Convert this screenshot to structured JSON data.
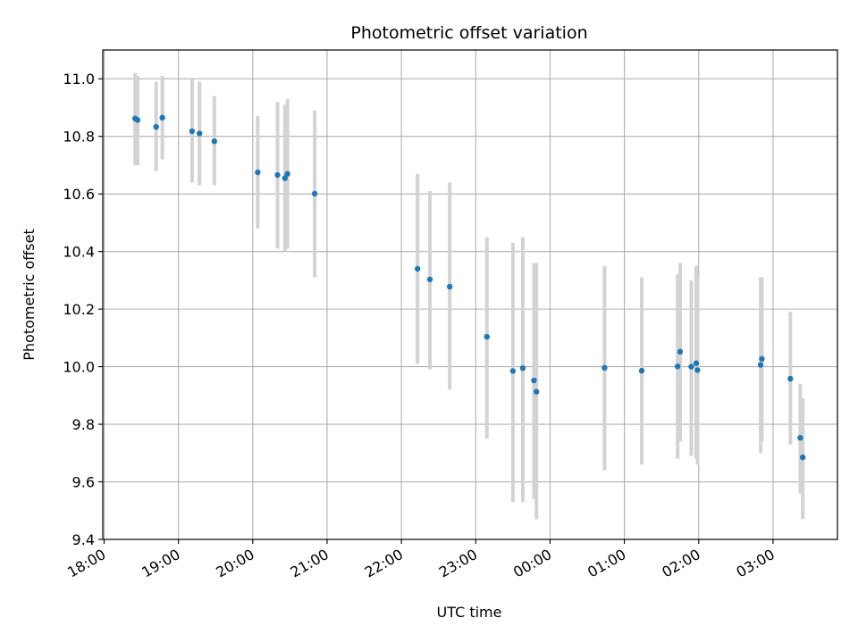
{
  "chart_data": {
    "type": "scatter",
    "title": "Photometric offset variation",
    "xlabel": "UTC time",
    "ylabel": "Photometric offset",
    "x_axis": {
      "kind": "time",
      "start": "18:00",
      "end": "03:52"
    },
    "ylim": [
      9.4,
      11.1
    ],
    "grid": true,
    "xticks": [
      "18:00",
      "19:00",
      "20:00",
      "21:00",
      "22:00",
      "23:00",
      "00:00",
      "01:00",
      "02:00",
      "03:00"
    ],
    "yticks": [
      "9.4",
      "9.6",
      "9.8",
      "10.0",
      "10.2",
      "10.4",
      "10.6",
      "10.8",
      "11.0"
    ],
    "colors": {
      "points": "#1f77b4",
      "error_bars": "#d3d3d3",
      "grid": "#b0b0b0"
    },
    "series": [
      {
        "points": [
          {
            "x": "18:25",
            "y": 10.862,
            "lo": 10.7,
            "hi": 11.02
          },
          {
            "x": "18:27",
            "y": 10.857,
            "lo": 10.7,
            "hi": 11.01
          },
          {
            "x": "18:42",
            "y": 10.833,
            "lo": 10.68,
            "hi": 10.99
          },
          {
            "x": "18:47",
            "y": 10.865,
            "lo": 10.72,
            "hi": 11.01
          },
          {
            "x": "19:11",
            "y": 10.818,
            "lo": 10.64,
            "hi": 11.0
          },
          {
            "x": "19:17",
            "y": 10.81,
            "lo": 10.63,
            "hi": 10.99
          },
          {
            "x": "19:29",
            "y": 10.783,
            "lo": 10.63,
            "hi": 10.94
          },
          {
            "x": "20:04",
            "y": 10.675,
            "lo": 10.48,
            "hi": 10.87
          },
          {
            "x": "20:20",
            "y": 10.666,
            "lo": 10.41,
            "hi": 10.92
          },
          {
            "x": "20:26",
            "y": 10.655,
            "lo": 10.4,
            "hi": 10.91
          },
          {
            "x": "20:28",
            "y": 10.67,
            "lo": 10.41,
            "hi": 10.93
          },
          {
            "x": "20:50",
            "y": 10.601,
            "lo": 10.31,
            "hi": 10.89
          },
          {
            "x": "22:13",
            "y": 10.34,
            "lo": 10.01,
            "hi": 10.67
          },
          {
            "x": "22:23",
            "y": 10.303,
            "lo": 9.99,
            "hi": 10.61
          },
          {
            "x": "22:39",
            "y": 10.278,
            "lo": 9.92,
            "hi": 10.64
          },
          {
            "x": "23:09",
            "y": 10.104,
            "lo": 9.75,
            "hi": 10.45
          },
          {
            "x": "23:30",
            "y": 9.985,
            "lo": 9.53,
            "hi": 10.43
          },
          {
            "x": "23:38",
            "y": 9.995,
            "lo": 9.53,
            "hi": 10.45
          },
          {
            "x": "23:47",
            "y": 9.952,
            "lo": 9.54,
            "hi": 10.36
          },
          {
            "x": "23:49",
            "y": 9.913,
            "lo": 9.47,
            "hi": 10.36
          },
          {
            "x": "00:44",
            "y": 9.996,
            "lo": 9.64,
            "hi": 10.35
          },
          {
            "x": "01:14",
            "y": 9.986,
            "lo": 9.66,
            "hi": 10.31
          },
          {
            "x": "01:43",
            "y": 10.001,
            "lo": 9.68,
            "hi": 10.32
          },
          {
            "x": "01:45",
            "y": 10.052,
            "lo": 9.74,
            "hi": 10.36
          },
          {
            "x": "01:54",
            "y": 10.0,
            "lo": 9.69,
            "hi": 10.3
          },
          {
            "x": "01:58",
            "y": 10.012,
            "lo": 9.68,
            "hi": 10.35
          },
          {
            "x": "01:59",
            "y": 9.988,
            "lo": 9.66,
            "hi": 10.31
          },
          {
            "x": "02:50",
            "y": 10.006,
            "lo": 9.7,
            "hi": 10.31
          },
          {
            "x": "02:51",
            "y": 10.027,
            "lo": 9.74,
            "hi": 10.31
          },
          {
            "x": "03:14",
            "y": 9.958,
            "lo": 9.73,
            "hi": 10.19
          },
          {
            "x": "03:22",
            "y": 9.753,
            "lo": 9.56,
            "hi": 9.94
          },
          {
            "x": "03:24",
            "y": 9.685,
            "lo": 9.47,
            "hi": 9.89
          }
        ]
      }
    ]
  }
}
